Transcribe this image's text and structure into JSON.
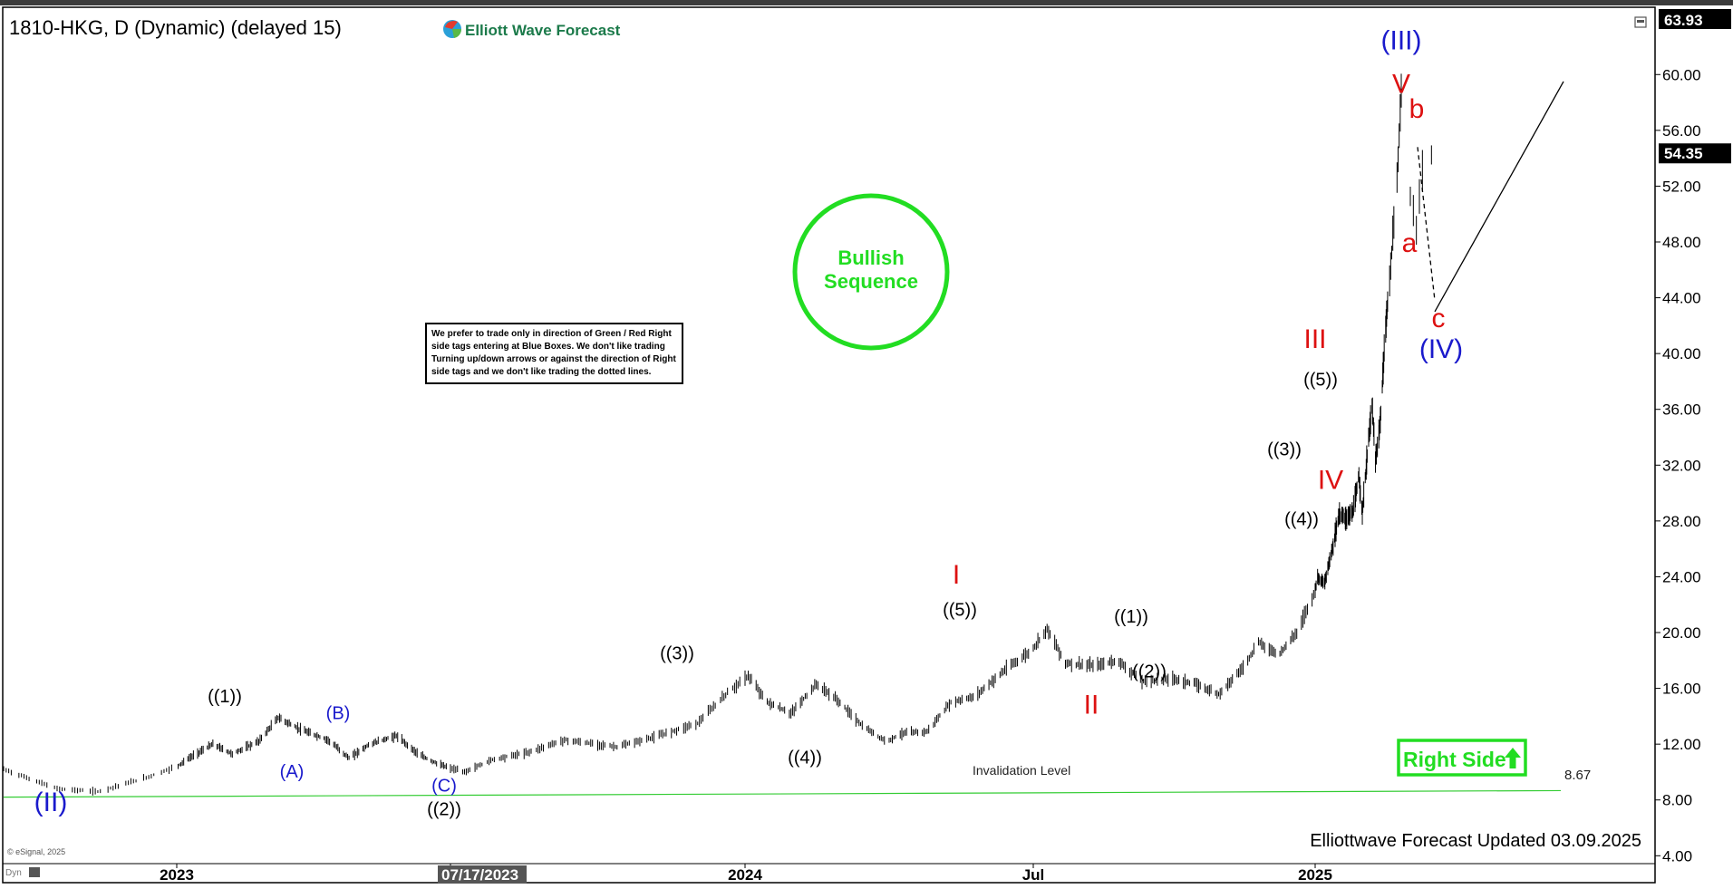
{
  "header": {
    "symbol_title": "1810-HKG, D (Dynamic) (delayed 15)",
    "logo_text": "Elliott Wave Forecast",
    "top_price": "63.93"
  },
  "notes": {
    "disclaimer_lines": [
      "We prefer to trade only in direction of Green / Red Right",
      "side tags entering at Blue Boxes. We don't like trading",
      "Turning up/down arrows or against the direction of Right",
      "side tags and we don't like trading the dotted lines."
    ],
    "bullish_line1": "Bullish",
    "bullish_line2": "Sequence",
    "right_side_label": "Right Side",
    "invalidation_label": "Invalidation Level",
    "invalidation_value": "8.67",
    "updated_text": "Elliottwave Forecast Updated 03.09.2025",
    "copyright": "© eSignal, 2025",
    "dyn_label": "Dyn"
  },
  "colors": {
    "bar": "#000000",
    "bullish_green": "#22dd22",
    "invalidation_green": "#33cc33",
    "wave_blue": "#1a1acc",
    "wave_red": "#dd1111",
    "axis_text": "#000000",
    "price_tag_bg": "#000000"
  },
  "chart_data": {
    "type": "ohlc",
    "y_axis": {
      "ticks": [
        4,
        8,
        12,
        16,
        20,
        24,
        28,
        32,
        36,
        40,
        44,
        48,
        52,
        56,
        60
      ],
      "tick_labels": [
        "4.00",
        "8.00",
        "12.00",
        "16.00",
        "20.00",
        "24.00",
        "28.00",
        "32.00",
        "36.00",
        "40.00",
        "44.00",
        "48.00",
        "52.00",
        "56.00",
        "60.00"
      ],
      "ylim": [
        3.5,
        64.5
      ]
    },
    "x_axis": {
      "xlim": [
        "2022-10-25",
        "2025-06-25"
      ],
      "ticks": [
        {
          "date": "2023-01-01",
          "label": "2023"
        },
        {
          "date": "2023-07-17",
          "label": "07/17/2023",
          "highlight": true
        },
        {
          "date": "2024-01-01",
          "label": "2024"
        },
        {
          "date": "2024-07-01",
          "label": "Jul"
        },
        {
          "date": "2025-01-01",
          "label": "2025"
        }
      ]
    },
    "last_price": 54.35,
    "last_price_label": "54.35",
    "price_path": [
      [
        "2022-10-25",
        10.2
      ],
      [
        "2022-11-15",
        8.8
      ],
      [
        "2022-12-01",
        8.6
      ],
      [
        "2022-12-20",
        9.6
      ],
      [
        "2023-01-10",
        11.0
      ],
      [
        "2023-01-27",
        12.0
      ],
      [
        "2023-02-10",
        11.3
      ],
      [
        "2023-03-01",
        12.2
      ],
      [
        "2023-03-15",
        13.9
      ],
      [
        "2023-04-01",
        13.0
      ],
      [
        "2023-04-20",
        12.3
      ],
      [
        "2023-05-05",
        11.0
      ],
      [
        "2023-05-20",
        12.0
      ],
      [
        "2023-06-08",
        12.6
      ],
      [
        "2023-06-25",
        11.2
      ],
      [
        "2023-07-10",
        10.5
      ],
      [
        "2023-07-25",
        10.0
      ],
      [
        "2023-08-10",
        10.9
      ],
      [
        "2023-08-30",
        11.4
      ],
      [
        "2023-09-20",
        12.3
      ],
      [
        "2023-10-20",
        11.8
      ],
      [
        "2023-11-10",
        12.5
      ],
      [
        "2023-12-05",
        13.5
      ],
      [
        "2023-12-22",
        15.7
      ],
      [
        "2024-01-03",
        16.9
      ],
      [
        "2024-01-15",
        15.0
      ],
      [
        "2024-01-30",
        14.2
      ],
      [
        "2024-02-15",
        16.3
      ],
      [
        "2024-02-28",
        15.2
      ],
      [
        "2024-03-15",
        13.3
      ],
      [
        "2024-03-30",
        12.2
      ],
      [
        "2024-04-10",
        12.8
      ],
      [
        "2024-04-25",
        12.9
      ],
      [
        "2024-05-10",
        15.0
      ],
      [
        "2024-05-25",
        15.4
      ],
      [
        "2024-06-15",
        17.5
      ],
      [
        "2024-06-30",
        18.7
      ],
      [
        "2024-07-10",
        20.3
      ],
      [
        "2024-07-22",
        17.8
      ],
      [
        "2024-08-10",
        17.6
      ],
      [
        "2024-08-25",
        18.0
      ],
      [
        "2024-09-10",
        16.5
      ],
      [
        "2024-09-30",
        16.7
      ],
      [
        "2024-10-15",
        16.3
      ],
      [
        "2024-10-30",
        15.6
      ],
      [
        "2024-11-15",
        17.5
      ],
      [
        "2024-11-25",
        19.3
      ],
      [
        "2024-12-08",
        18.4
      ],
      [
        "2024-12-20",
        20.0
      ],
      [
        "2025-01-05",
        24.0
      ],
      [
        "2025-01-20",
        23.5
      ],
      [
        "2025-02-05",
        26.0
      ],
      [
        "2025-02-20",
        28.5
      ],
      [
        "2025-03-05",
        28.2
      ],
      [
        "2025-03-20",
        28.6
      ],
      [
        "2025-04-01",
        31.3
      ],
      [
        "2025-04-08",
        28.5
      ],
      [
        "2025-04-20",
        33.5
      ],
      [
        "2025-04-28",
        36.3
      ],
      [
        "2025-05-05",
        32.3
      ],
      [
        "2025-05-15",
        35.0
      ],
      [
        "2025-05-25",
        41.5
      ],
      [
        "2025-06-01",
        44.5
      ],
      [
        "2025-06-08",
        51.0
      ],
      [
        "2025-06-13",
        58.7
      ],
      [
        "2025-06-16",
        51.5
      ],
      [
        "2025-06-18",
        49.0
      ],
      [
        "2025-06-21",
        55.5
      ],
      [
        "2025-06-23",
        54.3
      ]
    ],
    "invalidation_line": {
      "from": [
        "2022-10-25",
        8.2
      ],
      "to": [
        "2025-06-25",
        8.67
      ]
    },
    "projection": {
      "dashed": [
        [
          "2025-06-23",
          54.3
        ],
        [
          "2025-06-25",
          43.5
        ]
      ],
      "solid": [
        [
          "2025-06-25",
          43.5
        ],
        [
          "2025-06-25",
          59.5
        ]
      ]
    },
    "wave_labels": [
      {
        "text": "(II)",
        "x": "2022-11-25",
        "y": 7.2,
        "color": "blue",
        "size": "large"
      },
      {
        "text": "((1))",
        "x": "2023-03-12",
        "y": 15.0,
        "color": "black",
        "size": "normal"
      },
      {
        "text": "(A)",
        "x": "2023-05-02",
        "y": 9.6,
        "color": "blue",
        "size": "normal"
      },
      {
        "text": "(B)",
        "x": "2023-06-05",
        "y": 13.8,
        "color": "blue",
        "size": "normal"
      },
      {
        "text": "(C)",
        "x": "2023-08-15",
        "y": 8.6,
        "color": "blue",
        "size": "normal"
      },
      {
        "text": "((2))",
        "x": "2023-08-15",
        "y": 6.9,
        "color": "black",
        "size": "normal"
      },
      {
        "text": "((3))",
        "x": "2023-12-28",
        "y": 18.1,
        "color": "black",
        "size": "normal"
      },
      {
        "text": "((4))",
        "x": "2024-04-05",
        "y": 10.6,
        "color": "black",
        "size": "normal"
      },
      {
        "text": "I",
        "x": "2024-07-28",
        "y": 23.5,
        "color": "red",
        "size": "large"
      },
      {
        "text": "((5))",
        "x": "2024-07-28",
        "y": 21.2,
        "color": "black",
        "size": "normal"
      },
      {
        "text": "II",
        "x": "2024-11-05",
        "y": 14.2,
        "color": "red",
        "size": "large"
      },
      {
        "text": "((1))",
        "x": "2024-11-28",
        "y": 20.7,
        "color": "black",
        "size": "normal"
      },
      {
        "text": "((2))",
        "x": "2024-12-08",
        "y": 16.8,
        "color": "black",
        "size": "normal"
      },
      {
        "text": "((3))",
        "x": "2025-04-05",
        "y": 32.7,
        "color": "black",
        "size": "normal"
      },
      {
        "text": "((4))",
        "x": "2025-04-10",
        "y": 27.7,
        "color": "black",
        "size": "normal"
      },
      {
        "text": "III",
        "x": "2025-04-20",
        "y": 40.4,
        "color": "red",
        "size": "large"
      },
      {
        "text": "((5))",
        "x": "2025-04-22",
        "y": 37.7,
        "color": "black",
        "size": "normal"
      },
      {
        "text": "IV",
        "x": "2025-04-26",
        "y": 30.3,
        "color": "red",
        "size": "large"
      },
      {
        "text": "(III)",
        "x": "2025-06-05",
        "y": 61.8,
        "color": "blue",
        "size": "large"
      },
      {
        "text": "V",
        "x": "2025-06-05",
        "y": 58.7,
        "color": "red",
        "size": "large"
      },
      {
        "text": "b",
        "x": "2025-06-13",
        "y": 56.9,
        "color": "red",
        "size": "large"
      },
      {
        "text": "a",
        "x": "2025-06-10",
        "y": 47.3,
        "color": "red",
        "size": "large"
      },
      {
        "text": "c",
        "x": "2025-06-17",
        "y": 41.9,
        "color": "red",
        "size": "large"
      },
      {
        "text": "(IV)",
        "x": "2025-06-17",
        "y": 39.7,
        "color": "blue",
        "size": "large"
      }
    ]
  }
}
